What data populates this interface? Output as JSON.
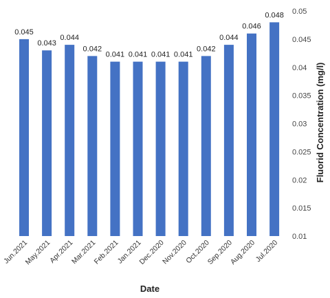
{
  "chart_data": {
    "type": "bar",
    "categories": [
      "Jun.2021",
      "May.2021",
      "Apr.2021",
      "Mar.2021",
      "Feb.2021",
      "Jan.2021",
      "Dec.2020",
      "Nov.2020",
      "Oct.2020",
      "Sep.2020",
      "Aug.2020",
      "Jul.2020"
    ],
    "series": [
      {
        "values": [
          0.045,
          0.043,
          0.044,
          0.042,
          0.041,
          0.041,
          0.041,
          0.041,
          0.042,
          0.044,
          0.046,
          0.048
        ]
      }
    ],
    "data_labels": [
      "0.045",
      "0.043",
      "0.044",
      "0.042",
      "0.041",
      "0.041",
      "0.041",
      "0.041",
      "0.042",
      "0.044",
      "0.046",
      "0.048"
    ],
    "xlabel": "Date",
    "ylabel": "Fluorid Concentration (mg/l)",
    "ylim": [
      0.01,
      0.05
    ],
    "yticks": [
      0.01,
      0.015,
      0.02,
      0.025,
      0.03,
      0.035,
      0.04,
      0.045,
      0.05
    ],
    "ytick_labels": [
      "0.01",
      "0.015",
      "0.02",
      "0.025",
      "0.03",
      "0.035",
      "0.04",
      "0.045",
      "0.05"
    ],
    "y_axis_position": "right",
    "grid": false,
    "legend": "none",
    "bar_color": "#4472C4"
  }
}
